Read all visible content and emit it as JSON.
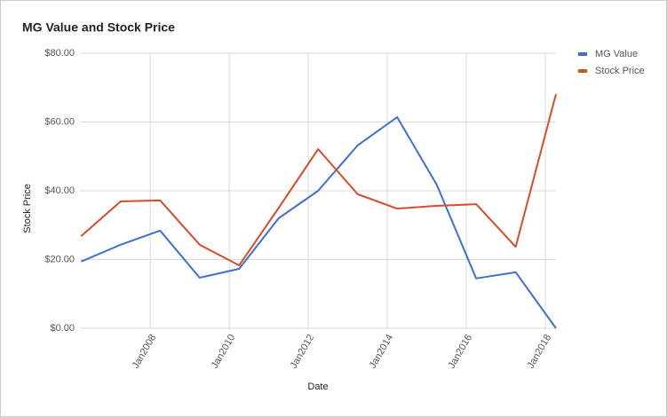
{
  "chart_data": {
    "type": "line",
    "title": "MG Value and Stock Price",
    "x_label": "Date",
    "y_label": "Stock Price",
    "x": [
      2006.25,
      2007.25,
      2008.25,
      2009.25,
      2010.25,
      2011.25,
      2012.25,
      2013.25,
      2014.25,
      2015.25,
      2016.25,
      2017.25,
      2018.27
    ],
    "xlim": [
      2006.22,
      2018.27
    ],
    "xticks": [
      {
        "value": 2008,
        "label": "Jan2008"
      },
      {
        "value": 2010,
        "label": "Jan2010"
      },
      {
        "value": 2012,
        "label": "Jan2012"
      },
      {
        "value": 2014,
        "label": "Jan2014"
      },
      {
        "value": 2016,
        "label": "Jan2016"
      },
      {
        "value": 2018,
        "label": "Jan2018"
      }
    ],
    "ylim": [
      0,
      80
    ],
    "yticks": [
      {
        "value": 0,
        "label": "$0.00"
      },
      {
        "value": 20,
        "label": "$20.00"
      },
      {
        "value": 40,
        "label": "$40.00"
      },
      {
        "value": 60,
        "label": "$60.00"
      },
      {
        "value": 80,
        "label": "$80.00"
      }
    ],
    "grid": true,
    "legend": "right",
    "series": [
      {
        "name": "MG Value",
        "color": "#3f6fd1",
        "values": [
          19.4,
          24.3,
          28.4,
          14.7,
          17.3,
          32,
          40,
          53.2,
          61.4,
          41.8,
          14.5,
          16.3,
          0
        ]
      },
      {
        "name": "Stock Price",
        "color": "#dc4b27",
        "values": [
          26.8,
          36.9,
          37.2,
          24.3,
          18.3,
          35,
          52.1,
          39,
          34.8,
          35.6,
          36.1,
          23.7,
          68.1
        ]
      }
    ]
  }
}
